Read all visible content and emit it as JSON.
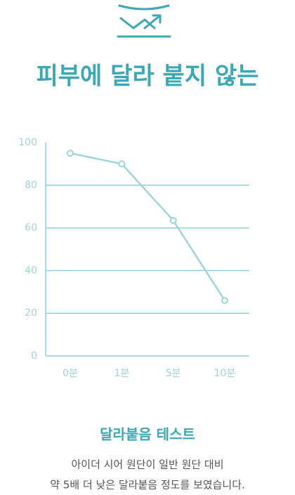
{
  "header": {
    "title": "피부에 달라 붙지 않는"
  },
  "chart_data": {
    "type": "line",
    "categories": [
      "0분",
      "1분",
      "5분",
      "10분"
    ],
    "series": [
      {
        "values": [
          95,
          90,
          63.5,
          26
        ],
        "color": "#9dd5dd"
      }
    ],
    "ylim": [
      0,
      100
    ],
    "yticks": [
      0,
      20,
      40,
      60,
      80,
      100
    ],
    "grid": true
  },
  "caption": {
    "title": "달라붙음 테스트",
    "lines": [
      "아이더 시어 원단이 일반 원단 대비",
      "약 5배 더 낮은 달라붙음 정도를 보였습니다."
    ]
  }
}
